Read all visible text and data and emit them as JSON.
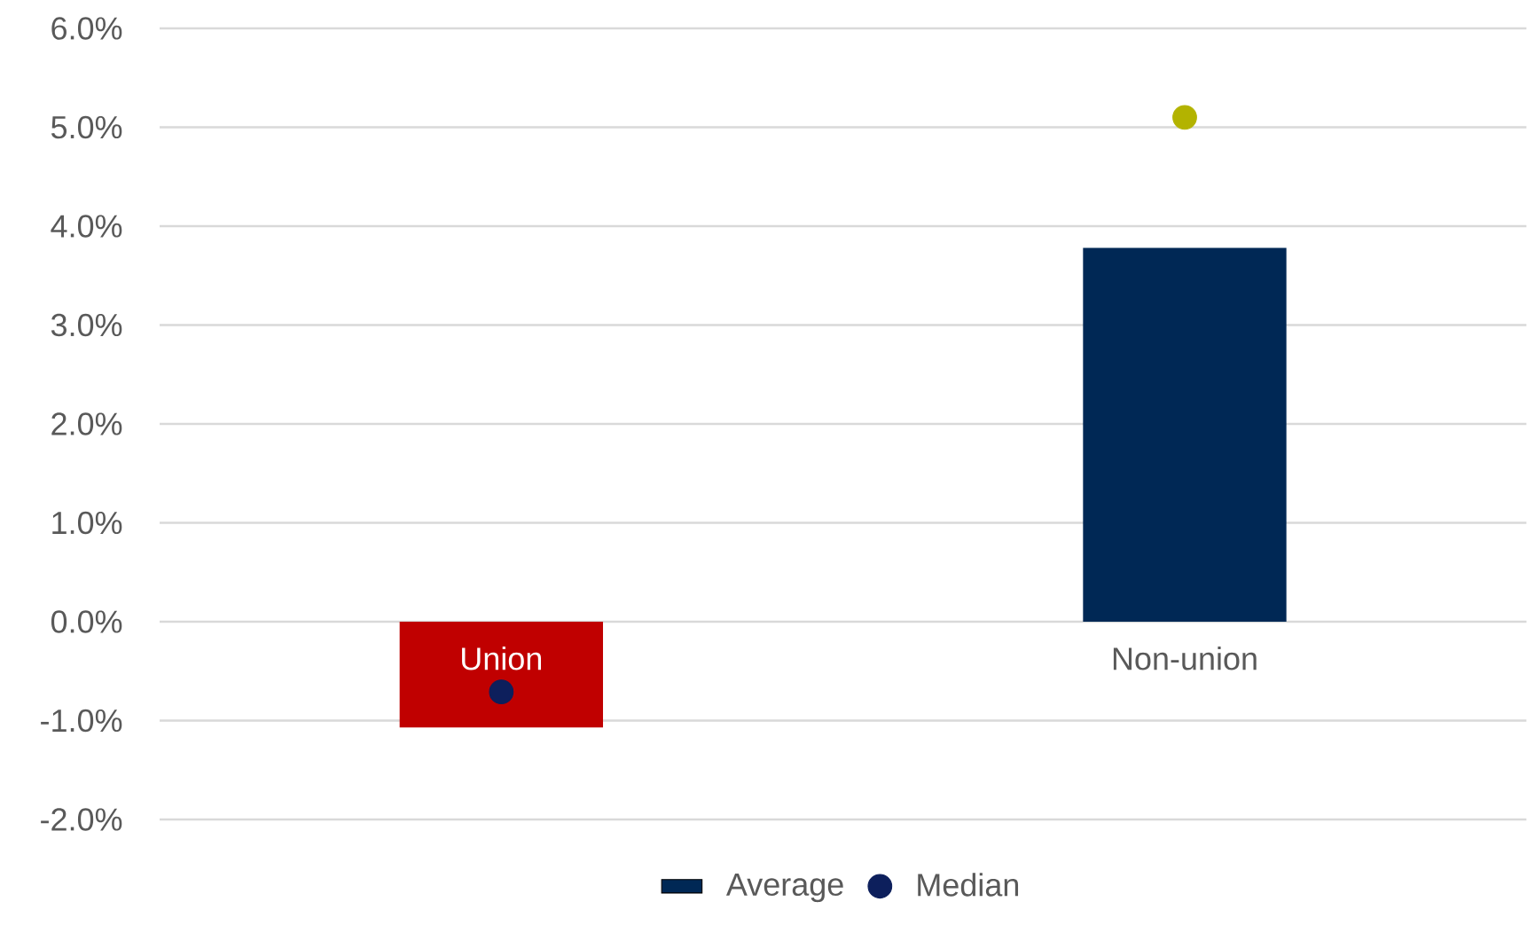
{
  "chart_data": {
    "type": "bar",
    "categories": [
      "Union",
      "Non-union"
    ],
    "series": [
      {
        "name": "Average",
        "color": "#002855",
        "colors": [
          "#c00000",
          "#002855"
        ],
        "values": [
          -1.07,
          3.78
        ]
      },
      {
        "name": "Median",
        "type": "scatter",
        "color": "#0d1f5c",
        "colors": [
          "#0d1f5c",
          "#b3b300"
        ],
        "marker": "circle",
        "values": [
          -0.71,
          5.1
        ]
      }
    ],
    "ylim": [
      -2,
      6
    ],
    "yticks": [
      {
        "value": -2,
        "label": "-2.0%"
      },
      {
        "value": -1,
        "label": "-1.0%"
      },
      {
        "value": 0,
        "label": "0.0%"
      },
      {
        "value": 1,
        "label": "1.0%"
      },
      {
        "value": 2,
        "label": "2.0%"
      },
      {
        "value": 3,
        "label": "3.0%"
      },
      {
        "value": 4,
        "label": "4.0%"
      },
      {
        "value": 5,
        "label": "5.0%"
      },
      {
        "value": 6,
        "label": "6.0%"
      }
    ],
    "grid": "y",
    "legend": "bottom"
  }
}
